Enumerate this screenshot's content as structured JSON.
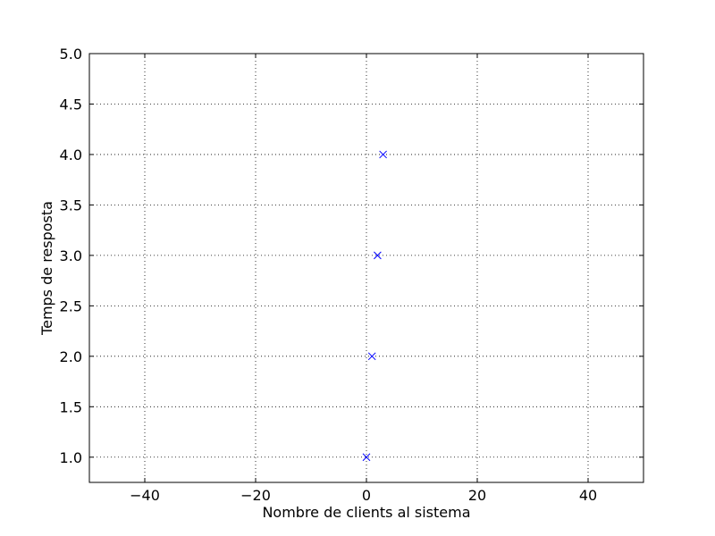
{
  "chart_data": {
    "type": "scatter",
    "title": "",
    "xlabel": "Nombre de clients al sistema",
    "ylabel": "Temps de resposta",
    "xlim": [
      -50,
      50
    ],
    "ylim": [
      0.75,
      5.0
    ],
    "xticks": [
      -40,
      -20,
      0,
      20,
      40
    ],
    "xtick_labels": [
      "−40",
      "−20",
      "0",
      "20",
      "40"
    ],
    "yticks": [
      1.0,
      1.5,
      2.0,
      2.5,
      3.0,
      3.5,
      4.0,
      4.5,
      5.0
    ],
    "ytick_labels": [
      "1.0",
      "1.5",
      "2.0",
      "2.5",
      "3.0",
      "3.5",
      "4.0",
      "4.5",
      "5.0"
    ],
    "grid": true,
    "marker": "x",
    "series": [
      {
        "color": "#0000ff",
        "x": [
          0,
          1,
          2,
          3
        ],
        "y": [
          1.0,
          2.0,
          3.0,
          4.0
        ]
      }
    ]
  }
}
